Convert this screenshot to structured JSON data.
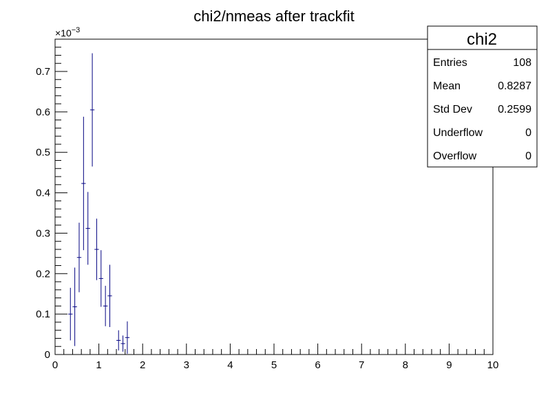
{
  "chart_data": {
    "type": "scatter",
    "title": "chi2/nmeas after trackfit",
    "xlabel": "",
    "ylabel": "",
    "xlim": [
      0,
      10
    ],
    "ylim": [
      0,
      0.78
    ],
    "y_exponent_label": "×10",
    "y_exponent_power": "−3",
    "x_ticks": [
      "0",
      "1",
      "2",
      "3",
      "4",
      "5",
      "6",
      "7",
      "8",
      "9",
      "10"
    ],
    "y_ticks": [
      "0",
      "0.1",
      "0.2",
      "0.3",
      "0.4",
      "0.5",
      "0.6",
      "0.7"
    ],
    "bin_width": 0.1,
    "series": [
      {
        "color": "#000080",
        "points": [
          {
            "x": 0.35,
            "y": 0.1,
            "err": 0.065
          },
          {
            "x": 0.45,
            "y": 0.118,
            "err": 0.097
          },
          {
            "x": 0.55,
            "y": 0.24,
            "err": 0.086
          },
          {
            "x": 0.65,
            "y": 0.423,
            "err": 0.165
          },
          {
            "x": 0.75,
            "y": 0.312,
            "err": 0.09
          },
          {
            "x": 0.85,
            "y": 0.605,
            "err": 0.14
          },
          {
            "x": 0.95,
            "y": 0.26,
            "err": 0.076
          },
          {
            "x": 1.05,
            "y": 0.188,
            "err": 0.07
          },
          {
            "x": 1.15,
            "y": 0.12,
            "err": 0.05
          },
          {
            "x": 1.25,
            "y": 0.145,
            "err": 0.077
          },
          {
            "x": 1.45,
            "y": 0.035,
            "err": 0.025
          },
          {
            "x": 1.55,
            "y": 0.027,
            "err": 0.02
          },
          {
            "x": 1.65,
            "y": 0.042,
            "err": 0.04
          }
        ]
      }
    ]
  },
  "stats": {
    "title": "chi2",
    "rows": [
      {
        "label": "Entries",
        "value": "108"
      },
      {
        "label": "Mean",
        "value": "0.8287"
      },
      {
        "label": "Std Dev",
        "value": "0.2599"
      },
      {
        "label": "Underflow",
        "value": "0"
      },
      {
        "label": "Overflow",
        "value": "0"
      }
    ]
  }
}
